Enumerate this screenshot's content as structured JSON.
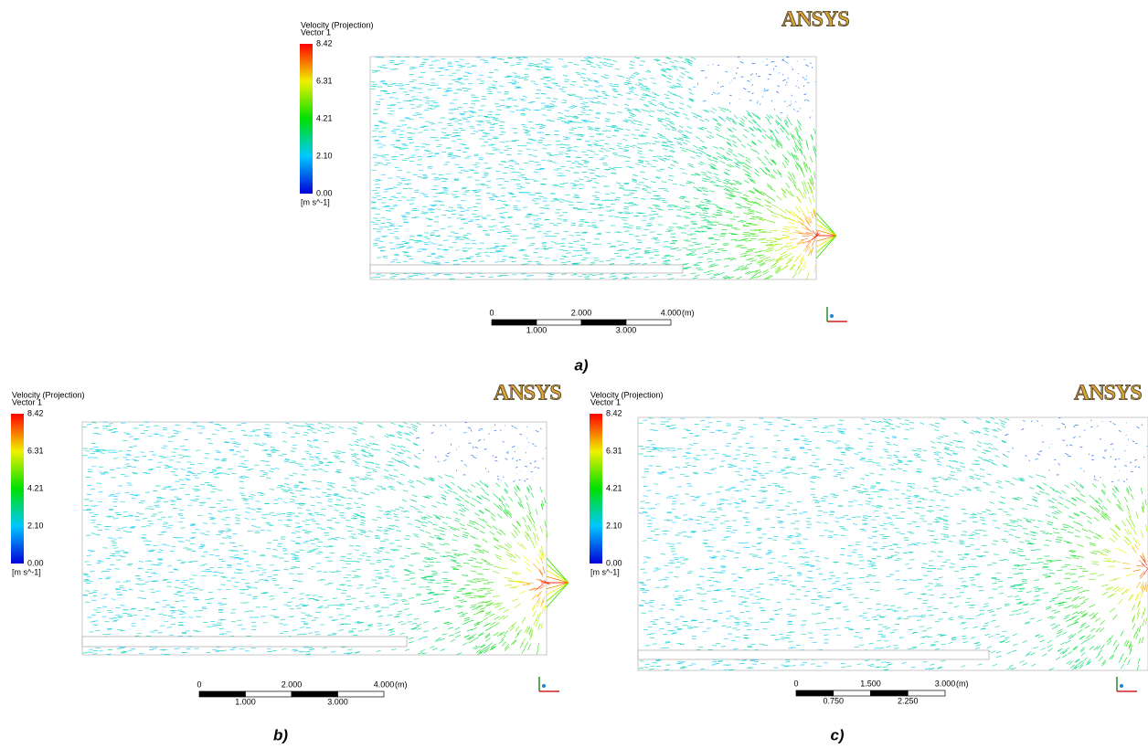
{
  "panels": [
    {
      "legend_title": "Velocity (Projection)",
      "legend_subtitle": "Vector 1",
      "legend_ticks": [
        "8.42",
        "6.31",
        "4.21",
        "2.10",
        "0.00"
      ],
      "legend_unit": "[m s^-1]",
      "logo": "ANSYS",
      "scale_top": [
        "0",
        "2.000",
        "4.000"
      ],
      "scale_bottom": [
        "1.000",
        "3.000"
      ],
      "scale_unit": "(m)",
      "caption": "a)"
    },
    {
      "legend_title": "Velocity (Projection)",
      "legend_subtitle": "Vector 1",
      "legend_ticks": [
        "8.42",
        "6.31",
        "4.21",
        "2.10",
        "0.00"
      ],
      "legend_unit": "[m s^-1]",
      "logo": "ANSYS",
      "scale_top": [
        "0",
        "2.000",
        "4.000"
      ],
      "scale_bottom": [
        "1.000",
        "3.000"
      ],
      "scale_unit": "(m)",
      "caption": "b)"
    },
    {
      "legend_title": "Velocity (Projection)",
      "legend_subtitle": "Vector 1",
      "legend_ticks": [
        "8.42",
        "6.31",
        "4.21",
        "2.10",
        "0.00"
      ],
      "legend_unit": "[m s^-1]",
      "logo": "ANSYS",
      "scale_top": [
        "0",
        "1.500",
        "3.000"
      ],
      "scale_bottom": [
        "0.750",
        "2.250"
      ],
      "scale_unit": "(m)",
      "caption": "c)"
    }
  ]
}
